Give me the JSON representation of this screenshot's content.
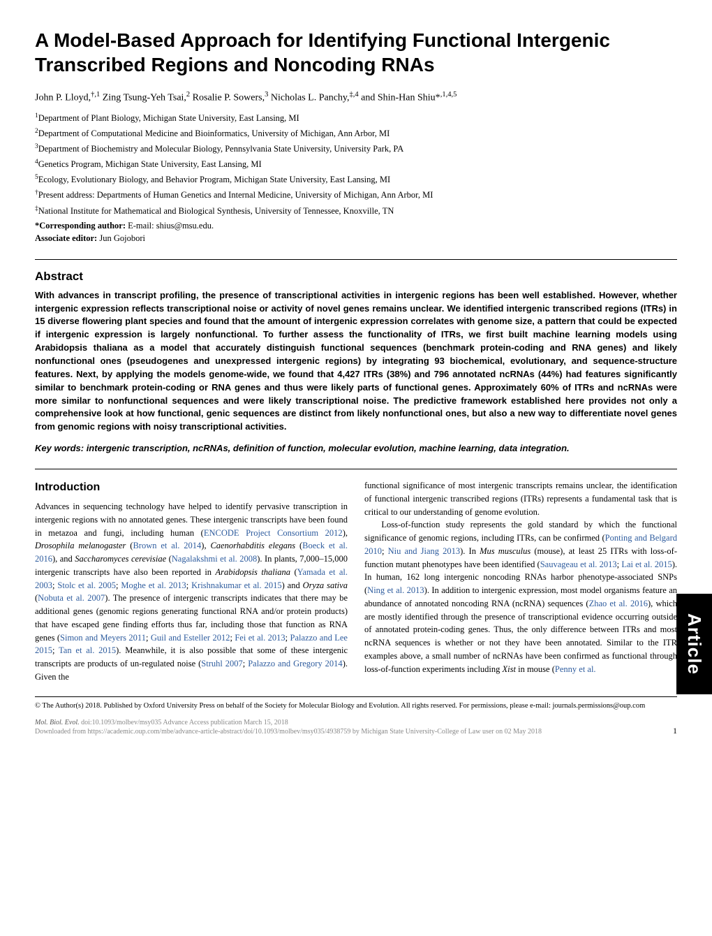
{
  "title": "A Model-Based Approach for Identifying Functional Intergenic Transcribed Regions and Noncoding RNAs",
  "authors_html": "John P. Lloyd,<sup>†,1</sup> Zing Tsung-Yeh Tsai,<sup>2</sup> Rosalie P. Sowers,<sup>3</sup> Nicholas L. Panchy,<sup>‡,4</sup> and Shin-Han Shiu*<sup>,1,4,5</sup>",
  "affiliations": [
    "<sup>1</sup>Department of Plant Biology, Michigan State University, East Lansing, MI",
    "<sup>2</sup>Department of Computational Medicine and Bioinformatics, University of Michigan, Ann Arbor, MI",
    "<sup>3</sup>Department of Biochemistry and Molecular Biology, Pennsylvania State University, University Park, PA",
    "<sup>4</sup>Genetics Program, Michigan State University, East Lansing, MI",
    "<sup>5</sup>Ecology, Evolutionary Biology, and Behavior Program, Michigan State University, East Lansing, MI",
    "<sup>†</sup>Present address: Departments of Human Genetics and Internal Medicine, University of Michigan, Ann Arbor, MI",
    "<sup>‡</sup>National Institute for Mathematical and Biological Synthesis, University of Tennessee, Knoxville, TN"
  ],
  "corresponding_label": "*Corresponding author:",
  "corresponding_text": " E-mail: shius@msu.edu.",
  "assoc_editor_label": "Associate editor:",
  "assoc_editor_name": " Jun Gojobori",
  "abstract_heading": "Abstract",
  "abstract_text": "With advances in transcript profiling, the presence of transcriptional activities in intergenic regions has been well established. However, whether intergenic expression reflects transcriptional noise or activity of novel genes remains unclear. We identified intergenic transcribed regions (ITRs) in 15 diverse flowering plant species and found that the amount of intergenic expression correlates with genome size, a pattern that could be expected if intergenic expression is largely nonfunctional. To further assess the functionality of ITRs, we first built machine learning models using Arabidopsis thaliana as a model that accurately distinguish functional sequences (benchmark protein-coding and RNA genes) and likely nonfunctional ones (pseudogenes and unexpressed intergenic regions) by integrating 93 biochemical, evolutionary, and sequence-structure features. Next, by applying the models genome-wide, we found that 4,427 ITRs (38%) and 796 annotated ncRNAs (44%) had features significantly similar to benchmark protein-coding or RNA genes and thus were likely parts of functional genes. Approximately 60% of ITRs and ncRNAs were more similar to nonfunctional sequences and were likely transcriptional noise. The predictive framework established here provides not only a comprehensive look at how functional, genic sequences are distinct from likely nonfunctional ones, but also a new way to differentiate novel genes from genomic regions with noisy transcriptional activities.",
  "keywords_label": "Key words:",
  "keywords_text": " intergenic transcription, ncRNAs, definition of function, molecular evolution, machine learning, data integration.",
  "intro_heading": "Introduction",
  "col_left_html": "Advances in sequencing technology have helped to identify pervasive transcription in intergenic regions with no annotated genes. These intergenic transcripts have been found in metazoa and fungi, including human (<span class=\"ref\">ENCODE Project Consortium 2012</span>), <em class=\"species\">Drosophila melanogaster</em> (<span class=\"ref\">Brown et al. 2014</span>), <em class=\"species\">Caenorhabditis elegans</em> (<span class=\"ref\">Boeck et al. 2016</span>), and <em class=\"species\">Saccharomyces cerevisiae</em> (<span class=\"ref\">Nagalakshmi et al. 2008</span>). In plants, 7,000–15,000 intergenic transcripts have also been reported in <em class=\"species\">Arabidopsis thaliana</em> (<span class=\"ref\">Yamada et al. 2003</span>; <span class=\"ref\">Stolc et al. 2005</span>; <span class=\"ref\">Moghe et al. 2013</span>; <span class=\"ref\">Krishnakumar et al. 2015</span>) and <em class=\"species\">Oryza sativa</em> (<span class=\"ref\">Nobuta et al. 2007</span>). The presence of intergenic transcripts indicates that there may be additional genes (genomic regions generating functional RNA and/or protein products) that have escaped gene finding efforts thus far, including those that function as RNA genes (<span class=\"ref\">Simon and Meyers 2011</span>; <span class=\"ref\">Guil and Esteller 2012</span>; <span class=\"ref\">Fei et al. 2013</span>; <span class=\"ref\">Palazzo and Lee 2015</span>; <span class=\"ref\">Tan et al. 2015</span>). Meanwhile, it is also possible that some of these intergenic transcripts are products of un-regulated noise (<span class=\"ref\">Struhl 2007</span>; <span class=\"ref\">Palazzo and Gregory 2014</span>). Given the",
  "col_right_html": "functional significance of most intergenic transcripts remains unclear, the identification of functional intergenic transcribed regions (ITRs) represents a fundamental task that is critical to our understanding of genome evolution.<br>&nbsp;&nbsp;&nbsp;Loss-of-function study represents the gold standard by which the functional significance of genomic regions, including ITRs, can be confirmed (<span class=\"ref\">Ponting and Belgard 2010</span>; <span class=\"ref\">Niu and Jiang 2013</span>). In <em class=\"species\">Mus musculus</em> (mouse), at least 25 ITRs with loss-of-function mutant phenotypes have been identified (<span class=\"ref\">Sauvageau et al. 2013</span>; <span class=\"ref\">Lai et al. 2015</span>). In human, 162 long intergenic noncoding RNAs harbor phenotype-associated SNPs (<span class=\"ref\">Ning et al. 2013</span>). In addition to intergenic expression, most model organisms feature an abundance of annotated noncoding RNA (ncRNA) sequences (<span class=\"ref\">Zhao et al. 2016</span>), which are mostly identified through the presence of transcriptional evidence occurring outside of annotated protein-coding genes. Thus, the only difference between ITRs and most ncRNA sequences is whether or not they have been annotated. Similar to the ITR examples above, a small number of ncRNAs have been confirmed as functional through loss-of-function experiments including <em class=\"species\">Xist</em> in mouse (<span class=\"ref\">Penny et al.</span>",
  "side_tab": "Article",
  "copyright": "© The Author(s) 2018. Published by Oxford University Press on behalf of the Society for Molecular Biology and Evolution. All rights reserved. For permissions, please e-mail: journals.permissions@oup.com",
  "footer_journal": "Mol. Biol. Evol.",
  "footer_doi": " doi:10.1093/molbev/msy035 ",
  "footer_access": "Advance Access publication March 15, 2018",
  "footer_download": "Downloaded from https://academic.oup.com/mbe/advance-article-abstract/doi/10.1093/molbev/msy035/4938759 by Michigan State University-College of Law user on 02 May 2018",
  "page_number": "1",
  "colors": {
    "ref_color": "#2e5c9e",
    "text_color": "#000000",
    "background": "#ffffff",
    "tab_bg": "#000000",
    "tab_fg": "#ffffff",
    "footer_gray": "#888888"
  },
  "typography": {
    "title_fontsize": 28,
    "title_family": "Arial",
    "body_fontsize": 12.5,
    "abstract_fontsize": 13,
    "heading_fontsize": 17
  }
}
